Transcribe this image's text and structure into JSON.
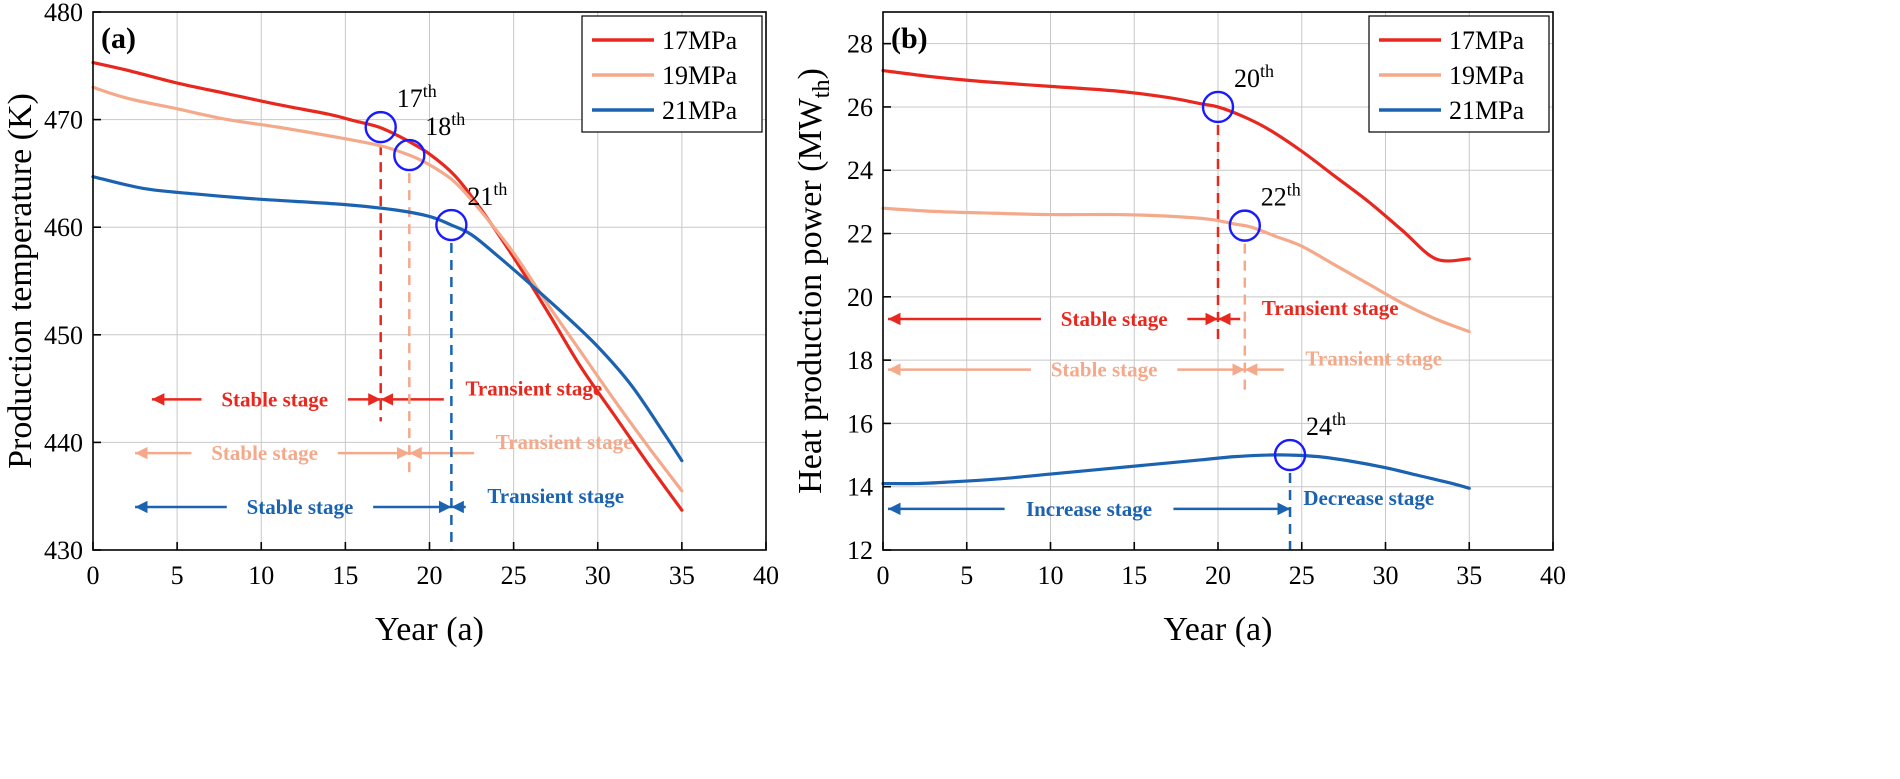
{
  "chart_data": [
    {
      "type": "line",
      "panel": "(a)",
      "xlabel": "Year (a)",
      "ylabel": "Production temperature (K)",
      "xlim": [
        0,
        40
      ],
      "ylim": [
        430,
        480
      ],
      "xticks": [
        "0",
        "5",
        "10",
        "15",
        "20",
        "25",
        "30",
        "35",
        "40"
      ],
      "yticks": [
        "430",
        "440",
        "450",
        "460",
        "470",
        "480"
      ],
      "grid": true,
      "legend_position": "top-right",
      "series": [
        {
          "name": "17MPa",
          "color": "#e8281e",
          "x": [
            0,
            2,
            5,
            8,
            11,
            14,
            15.5,
            17,
            18.5,
            20,
            21.5,
            23,
            25,
            27,
            29,
            31,
            33,
            35
          ],
          "y": [
            475.3,
            474.6,
            473.4,
            472.4,
            471.4,
            470.5,
            469.9,
            469.3,
            468.2,
            466.8,
            464.8,
            461.8,
            457.2,
            452.2,
            447.0,
            442.5,
            438.0,
            433.7
          ]
        },
        {
          "name": "19MPa",
          "color": "#f5a98b",
          "x": [
            0,
            2,
            5,
            8,
            11,
            14,
            17,
            18.8,
            20,
            21.5,
            23,
            25,
            27,
            29,
            31,
            33,
            35
          ],
          "y": [
            473.0,
            472.0,
            471.0,
            470.0,
            469.3,
            468.5,
            467.6,
            466.7,
            465.8,
            464.2,
            461.6,
            457.6,
            452.9,
            448.4,
            443.9,
            439.6,
            435.5
          ]
        },
        {
          "name": "21MPa",
          "color": "#1b63b0",
          "x": [
            0,
            3,
            6,
            9,
            12,
            15,
            18,
            20,
            21.3,
            22.5,
            24,
            26,
            28,
            30,
            32,
            34,
            35
          ],
          "y": [
            464.7,
            463.6,
            463.1,
            462.7,
            462.4,
            462.1,
            461.6,
            461.0,
            460.2,
            459.3,
            457.4,
            454.7,
            451.9,
            448.9,
            445.3,
            440.7,
            438.3
          ]
        }
      ],
      "markers": [
        {
          "label": "17",
          "suffix": "th",
          "series": "17MPa",
          "x": 17.1,
          "y": 469.3
        },
        {
          "label": "18",
          "suffix": "th",
          "series": "19MPa",
          "x": 18.8,
          "y": 466.7
        },
        {
          "label": "21",
          "suffix": "th",
          "series": "21MPa",
          "x": 21.3,
          "y": 460.2
        }
      ],
      "stage_rows": [
        {
          "series": "17MPa",
          "y": 444,
          "split": 17.1,
          "left_label": "Stable stage",
          "right_label": "Transient stage",
          "left_text_x": 10.8,
          "right_text_x": 26.2,
          "arrow_start": 3.5,
          "arrow_end": 21.5
        },
        {
          "series": "19MPa",
          "y": 439,
          "split": 18.8,
          "left_label": "Stable stage",
          "right_label": "Transient stage",
          "left_text_x": 10.2,
          "right_text_x": 28.0,
          "arrow_start": 2.5,
          "arrow_end": 23.0
        },
        {
          "series": "21MPa",
          "y": 434,
          "split": 21.3,
          "left_label": "Stable stage",
          "right_label": "Transient stage",
          "left_text_x": 12.3,
          "right_text_x": 27.5,
          "arrow_start": 2.5,
          "arrow_end": 26.0
        }
      ]
    },
    {
      "type": "line",
      "panel": "(b)",
      "xlabel": "Year (a)",
      "ylabel": "Heat production power (MW",
      "ylabel_sub": "th",
      "ylabel_close": ")",
      "xlim": [
        0,
        40
      ],
      "ylim": [
        12,
        29
      ],
      "xticks": [
        "0",
        "5",
        "10",
        "15",
        "20",
        "25",
        "30",
        "35",
        "40"
      ],
      "yticks": [
        "12",
        "14",
        "16",
        "18",
        "20",
        "22",
        "24",
        "26",
        "28"
      ],
      "grid": true,
      "legend_position": "top-right",
      "series": [
        {
          "name": "17MPa",
          "color": "#e8281e",
          "x": [
            0,
            3,
            6,
            10,
            14,
            17,
            19,
            20,
            21.5,
            23,
            25,
            27,
            29,
            31,
            33,
            35
          ],
          "y": [
            27.15,
            26.95,
            26.8,
            26.65,
            26.5,
            26.3,
            26.1,
            26.0,
            25.7,
            25.3,
            24.6,
            23.8,
            23.0,
            22.1,
            21.2,
            21.2
          ]
        },
        {
          "name": "19MPa",
          "color": "#f5a98b",
          "x": [
            0,
            3,
            6,
            10,
            14,
            17,
            19.5,
            21,
            22,
            23.5,
            25,
            27,
            29,
            31,
            33,
            35
          ],
          "y": [
            22.8,
            22.7,
            22.65,
            22.6,
            22.6,
            22.55,
            22.45,
            22.3,
            22.2,
            21.9,
            21.6,
            21.0,
            20.4,
            19.8,
            19.3,
            18.9
          ]
        },
        {
          "name": "21MPa",
          "color": "#1b63b0",
          "x": [
            0,
            2,
            4,
            7,
            10,
            13,
            16,
            19,
            21,
            23,
            24.3,
            26,
            28,
            30,
            32,
            34,
            35
          ],
          "y": [
            14.1,
            14.1,
            14.15,
            14.25,
            14.4,
            14.55,
            14.7,
            14.85,
            14.95,
            15.0,
            15.0,
            14.95,
            14.8,
            14.6,
            14.35,
            14.1,
            13.95
          ]
        }
      ],
      "markers": [
        {
          "label": "20",
          "suffix": "th",
          "series": "17MPa",
          "x": 20.0,
          "y": 26.0
        },
        {
          "label": "22",
          "suffix": "th",
          "series": "19MPa",
          "x": 21.6,
          "y": 22.25
        },
        {
          "label": "24",
          "suffix": "th",
          "series": "21MPa",
          "x": 24.3,
          "y": 15.0
        }
      ],
      "stage_rows": [
        {
          "series": "17MPa",
          "y": 19.3,
          "split": 20.0,
          "left_label": "Stable stage",
          "right_label": "Transient stage",
          "left_text_x": 13.8,
          "right_text_x": 26.7,
          "arrow_start": 0.3,
          "arrow_end": 24.3
        },
        {
          "series": "19MPa",
          "y": 17.7,
          "split": 21.6,
          "left_label": "Stable stage",
          "right_label": "Transient stage",
          "left_text_x": 13.2,
          "right_text_x": 29.3,
          "arrow_start": 0.3,
          "arrow_end": 25.3
        },
        {
          "series": "21MPa",
          "y": 13.3,
          "split": 24.3,
          "left_label": "Increase stage",
          "right_label": "Decrease stage",
          "left_text_x": 12.3,
          "right_text_x": 29.0,
          "arrow_start": 0.3,
          "arrow_end": 28.2
        }
      ]
    }
  ]
}
